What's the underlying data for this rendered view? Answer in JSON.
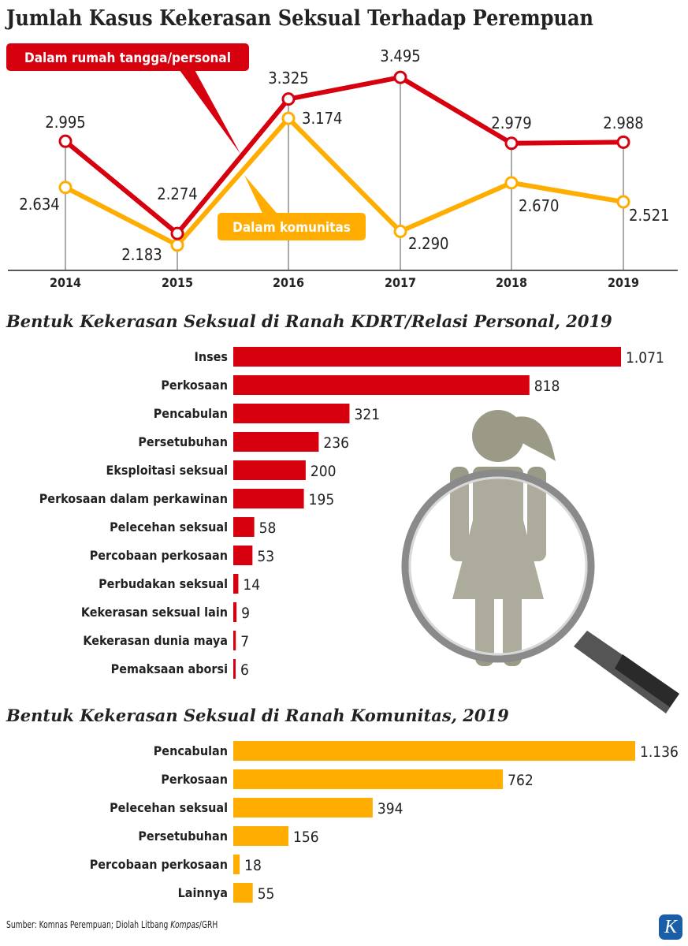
{
  "colors": {
    "red": "#d7000f",
    "yellow": "#ffad00",
    "grey": "#9b9a87",
    "logo": "#1a5ea8"
  },
  "chart_data": [
    {
      "type": "line",
      "title": "Jumlah Kasus Kekerasan Seksual Terhadap Perempuan",
      "categories": [
        "2014",
        "2015",
        "2016",
        "2017",
        "2018",
        "2019"
      ],
      "series": [
        {
          "name": "Dalam rumah tangga/personal",
          "color": "#d7000f",
          "values": [
            2995,
            2274,
            3325,
            3495,
            2979,
            2988
          ],
          "labels": [
            "2.995",
            "2.274",
            "3.325",
            "3.495",
            "2.979",
            "2.988"
          ]
        },
        {
          "name": "Dalam komunitas",
          "color": "#ffad00",
          "values": [
            2634,
            2183,
            3174,
            2290,
            2670,
            2521
          ],
          "labels": [
            "2.634",
            "2.183",
            "3.174",
            "2.290",
            "2.670",
            "2.521"
          ]
        }
      ],
      "grid": false
    },
    {
      "type": "bar",
      "orientation": "horizontal",
      "title": "Bentuk Kekerasan Seksual di Ranah KDRT/Relasi Personal, 2019",
      "color": "#d7000f",
      "categories": [
        "Inses",
        "Perkosaan",
        "Pencabulan",
        "Persetubuhan",
        "Eksploitasi seksual",
        "Perkosaan dalam perkawinan",
        "Pelecehan seksual",
        "Percobaan perkosaan",
        "Perbudakan seksual",
        "Kekerasan seksual lain",
        "Kekerasan dunia maya",
        "Pemaksaan aborsi"
      ],
      "values": [
        1071,
        818,
        321,
        236,
        200,
        195,
        58,
        53,
        14,
        9,
        7,
        6
      ],
      "labels": [
        "1.071",
        "818",
        "321",
        "236",
        "200",
        "195",
        "58",
        "53",
        "14",
        "9",
        "7",
        "6"
      ]
    },
    {
      "type": "bar",
      "orientation": "horizontal",
      "title": "Bentuk Kekerasan Seksual di Ranah Komunitas, 2019",
      "color": "#ffad00",
      "categories": [
        "Pencabulan",
        "Perkosaan",
        "Pelecehan seksual",
        "Persetubuhan",
        "Percobaan perkosaan",
        "Lainnya"
      ],
      "values": [
        1136,
        762,
        394,
        156,
        18,
        55
      ],
      "labels": [
        "1.136",
        "762",
        "394",
        "156",
        "18",
        "55"
      ]
    }
  ],
  "footer": {
    "source_prefix": "Sumber: Komnas Perempuan; Diolah Litbang ",
    "source_italic": "Kompas",
    "source_suffix": "/GRH",
    "logo": "K"
  },
  "icons": {
    "illustration": "woman-under-magnifier-icon"
  }
}
